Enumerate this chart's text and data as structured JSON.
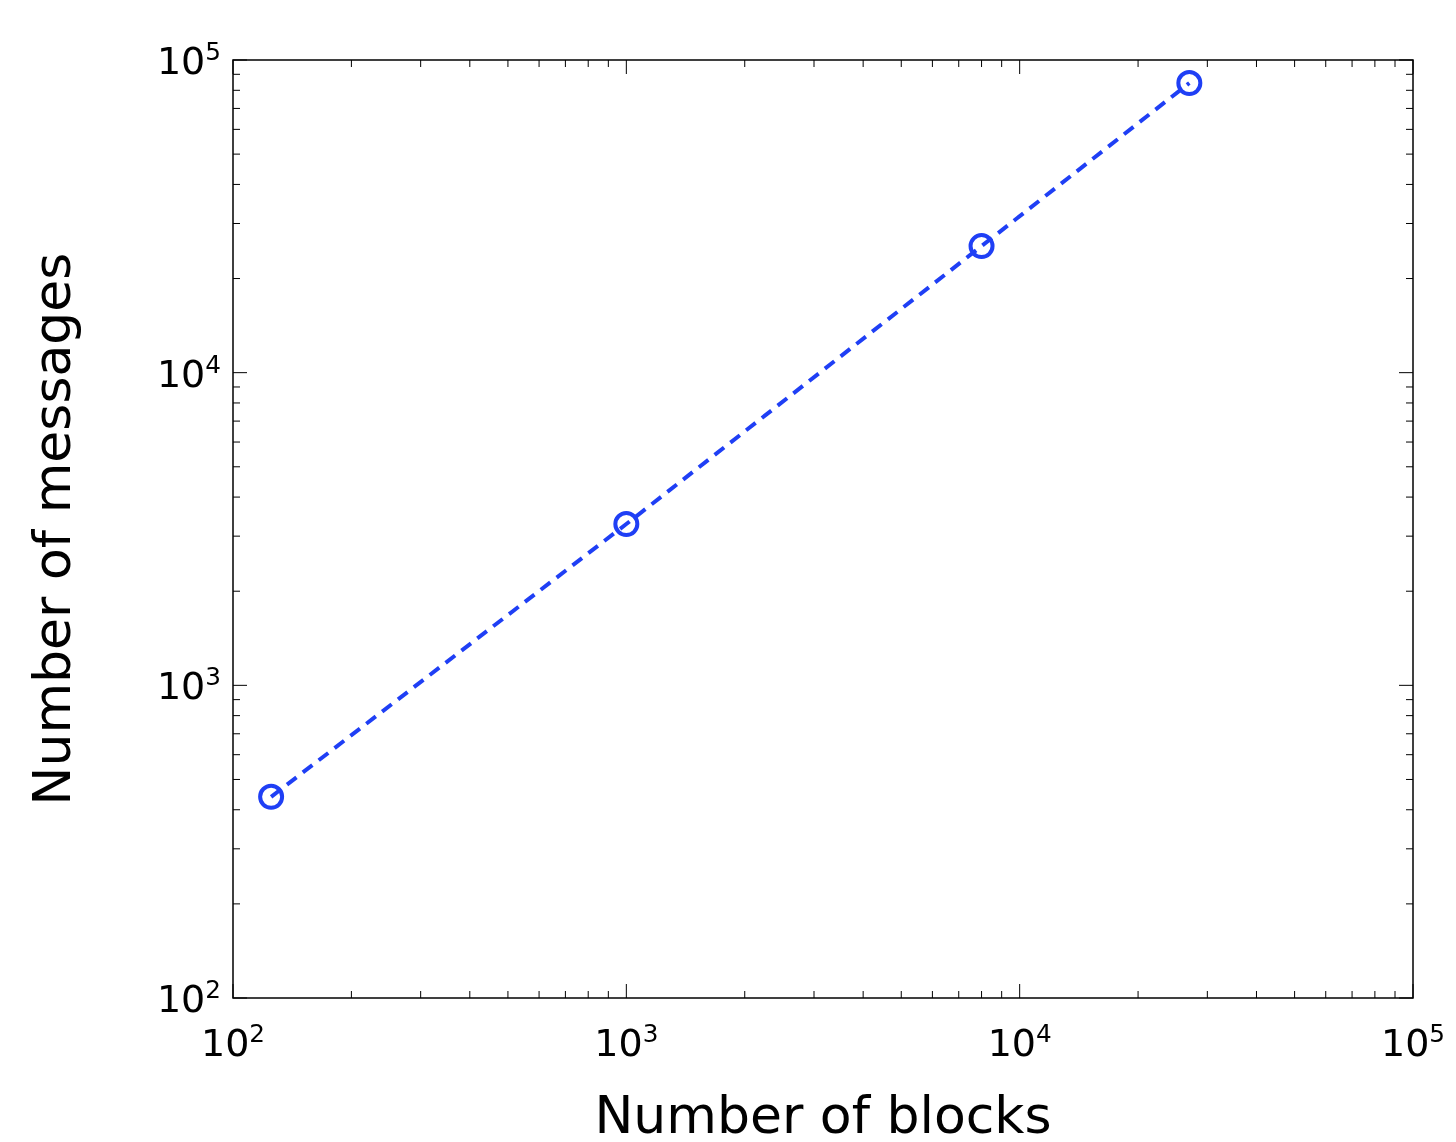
{
  "chart_data": {
    "type": "line",
    "xlabel": "Number of blocks",
    "ylabel": "Number of messages",
    "x": [
      125,
      1000,
      8000,
      27000
    ],
    "series": [
      {
        "color": "#1f3ff5",
        "values": [
          440,
          3280,
          25400,
          84400
        ]
      }
    ],
    "log": "xy",
    "marker": "circle",
    "line_style": "dashed",
    "grid": false,
    "xlim": [
      100,
      100000
    ],
    "ylim": [
      100,
      100000
    ],
    "xticks": [
      {
        "value": 100,
        "label": "10$^{2}$"
      },
      {
        "value": 200,
        "label": null
      },
      {
        "value": 300,
        "label": null
      },
      {
        "value": 400,
        "label": null
      },
      {
        "value": 500,
        "label": null
      },
      {
        "value": 600,
        "label": null
      },
      {
        "value": 700,
        "label": null
      },
      {
        "value": 800,
        "label": null
      },
      {
        "value": 900,
        "label": null
      },
      {
        "value": 1000,
        "label": "10$^{3}$"
      },
      {
        "value": 2000,
        "label": null
      },
      {
        "value": 3000,
        "label": null
      },
      {
        "value": 4000,
        "label": null
      },
      {
        "value": 5000,
        "label": null
      },
      {
        "value": 6000,
        "label": null
      },
      {
        "value": 7000,
        "label": null
      },
      {
        "value": 8000,
        "label": null
      },
      {
        "value": 9000,
        "label": null
      },
      {
        "value": 10000,
        "label": "10$^{4}$"
      },
      {
        "value": 20000,
        "label": null
      },
      {
        "value": 30000,
        "label": null
      },
      {
        "value": 40000,
        "label": null
      },
      {
        "value": 50000,
        "label": null
      },
      {
        "value": 60000,
        "label": null
      },
      {
        "value": 70000,
        "label": null
      },
      {
        "value": 80000,
        "label": null
      },
      {
        "value": 90000,
        "label": null
      },
      {
        "value": 100000,
        "label": "10$^{5}$"
      }
    ],
    "yticks": [
      {
        "value": 100,
        "label": "10$^{2}$"
      },
      {
        "value": 200,
        "label": null
      },
      {
        "value": 300,
        "label": null
      },
      {
        "value": 400,
        "label": null
      },
      {
        "value": 500,
        "label": null
      },
      {
        "value": 600,
        "label": null
      },
      {
        "value": 700,
        "label": null
      },
      {
        "value": 800,
        "label": null
      },
      {
        "value": 900,
        "label": null
      },
      {
        "value": 1000,
        "label": "10$^{3}$"
      },
      {
        "value": 2000,
        "label": null
      },
      {
        "value": 3000,
        "label": null
      },
      {
        "value": 4000,
        "label": null
      },
      {
        "value": 5000,
        "label": null
      },
      {
        "value": 6000,
        "label": null
      },
      {
        "value": 7000,
        "label": null
      },
      {
        "value": 8000,
        "label": null
      },
      {
        "value": 9000,
        "label": null
      },
      {
        "value": 10000,
        "label": "10$^{4}$"
      },
      {
        "value": 20000,
        "label": null
      },
      {
        "value": 30000,
        "label": null
      },
      {
        "value": 40000,
        "label": null
      },
      {
        "value": 50000,
        "label": null
      },
      {
        "value": 60000,
        "label": null
      },
      {
        "value": 70000,
        "label": null
      },
      {
        "value": 80000,
        "label": null
      },
      {
        "value": 90000,
        "label": null
      },
      {
        "value": 100000,
        "label": "10$^{5}$"
      }
    ]
  }
}
